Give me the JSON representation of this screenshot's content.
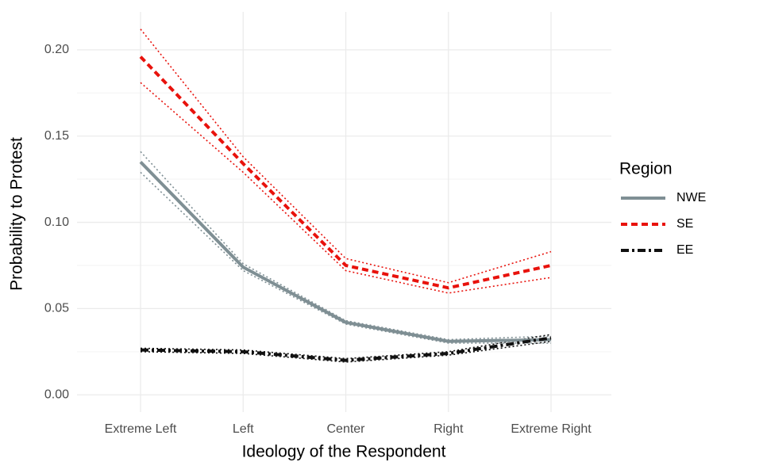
{
  "chart_data": {
    "type": "line",
    "x_label": "Ideology of the Respondent",
    "y_label": "Probability to Protest",
    "legend_title": "Region",
    "legend_position": "right",
    "grid": true,
    "categories": [
      "Extreme Left",
      "Left",
      "Center",
      "Right",
      "Extreme Right"
    ],
    "ylim": [
      -0.01,
      0.222
    ],
    "yticks": [
      {
        "value": 0,
        "label": "0.00"
      },
      {
        "value": 0.05,
        "label": "0.05"
      },
      {
        "value": 0.1,
        "label": "0.10"
      },
      {
        "value": 0.15,
        "label": "0.15"
      },
      {
        "value": 0.2,
        "label": "0.20"
      }
    ],
    "series": [
      {
        "name": "NWE",
        "color": "#7f8f94",
        "linestyle": "solid",
        "values": [
          0.135,
          0.074,
          0.042,
          0.031,
          0.032
        ],
        "lower": [
          0.129,
          0.072,
          0.041,
          0.03,
          0.03
        ],
        "upper": [
          0.141,
          0.076,
          0.043,
          0.032,
          0.034
        ]
      },
      {
        "name": "SE",
        "color": "#e8120c",
        "linestyle": "dashed",
        "values": [
          0.196,
          0.134,
          0.075,
          0.062,
          0.075
        ],
        "lower": [
          0.181,
          0.129,
          0.072,
          0.059,
          0.068
        ],
        "upper": [
          0.212,
          0.138,
          0.079,
          0.065,
          0.083
        ]
      },
      {
        "name": "EE",
        "color": "#111111",
        "linestyle": "dashdot",
        "values": [
          0.026,
          0.025,
          0.02,
          0.024,
          0.033
        ],
        "lower": [
          0.025,
          0.024,
          0.019,
          0.023,
          0.031
        ],
        "upper": [
          0.027,
          0.026,
          0.021,
          0.025,
          0.035
        ]
      }
    ]
  }
}
